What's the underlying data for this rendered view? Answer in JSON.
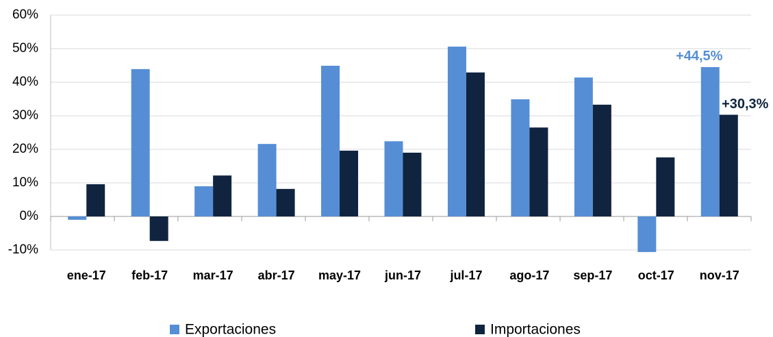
{
  "chart_data": {
    "type": "bar",
    "categories": [
      "ene-17",
      "feb-17",
      "mar-17",
      "abr-17",
      "may-17",
      "jun-17",
      "jul-17",
      "ago-17",
      "sep-17",
      "oct-17",
      "nov-17"
    ],
    "series": [
      {
        "name": "Exportaciones",
        "color": "#558ed5",
        "values": [
          -1,
          43.9,
          9,
          21.6,
          44.9,
          22.4,
          50.6,
          34.9,
          41.4,
          -10.6,
          44.5
        ],
        "value_labels": [
          null,
          null,
          null,
          null,
          null,
          null,
          null,
          null,
          null,
          null,
          "+44,5%"
        ]
      },
      {
        "name": "Importaciones",
        "color": "#10243f",
        "values": [
          9.6,
          -7.3,
          12.2,
          8.2,
          19.6,
          19,
          42.9,
          26.5,
          33.3,
          17.6,
          30.3
        ],
        "value_labels": [
          null,
          null,
          null,
          null,
          null,
          null,
          null,
          null,
          null,
          null,
          "+30,3%"
        ]
      }
    ],
    "ylim": [
      -10,
      60
    ],
    "yticks": [
      {
        "value": -10,
        "label": "-10%"
      },
      {
        "value": 0,
        "label": "0%"
      },
      {
        "value": 10,
        "label": "10%"
      },
      {
        "value": 20,
        "label": "20%"
      },
      {
        "value": 30,
        "label": "30%"
      },
      {
        "value": 40,
        "label": "40%"
      },
      {
        "value": 50,
        "label": "50%"
      },
      {
        "value": 60,
        "label": "60%"
      }
    ],
    "grid": true,
    "legend": "bottom"
  }
}
